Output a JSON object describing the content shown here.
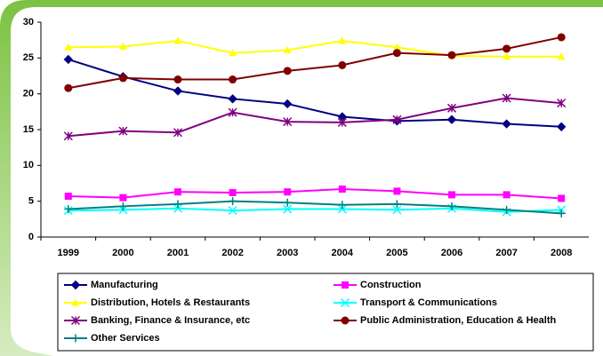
{
  "chart_data": {
    "type": "line",
    "categories": [
      "1999",
      "2000",
      "2001",
      "2002",
      "2003",
      "2004",
      "2005",
      "2006",
      "2007",
      "2008"
    ],
    "ylim": [
      0,
      30
    ],
    "yticks": [
      0,
      5,
      10,
      15,
      20,
      25,
      30
    ],
    "grid": false,
    "series": [
      {
        "name": "Manufacturing",
        "color": "#000080",
        "marker": "diamond",
        "values": [
          24.8,
          22.4,
          20.4,
          19.3,
          18.6,
          16.8,
          16.2,
          16.4,
          15.8,
          15.4
        ]
      },
      {
        "name": "Construction",
        "color": "#ff00ff",
        "marker": "square",
        "values": [
          5.7,
          5.5,
          6.3,
          6.2,
          6.3,
          6.7,
          6.4,
          5.9,
          5.9,
          5.4
        ]
      },
      {
        "name": "Distribution, Hotels & Restaurants",
        "color": "#ffff00",
        "marker": "triangle",
        "values": [
          26.5,
          26.6,
          27.4,
          25.7,
          26.1,
          27.4,
          26.5,
          25.3,
          25.2,
          25.2
        ]
      },
      {
        "name": "Transport & Communications",
        "color": "#00ffff",
        "marker": "x",
        "values": [
          3.7,
          3.8,
          4.0,
          3.7,
          3.9,
          3.9,
          3.8,
          4.0,
          3.5,
          3.8
        ]
      },
      {
        "name": "Banking, Finance & Insurance, etc",
        "color": "#800080",
        "marker": "asterisk",
        "values": [
          14.1,
          14.8,
          14.6,
          17.4,
          16.1,
          16.0,
          16.4,
          18.0,
          19.4,
          18.7
        ]
      },
      {
        "name": "Public Administration, Education & Health",
        "color": "#800000",
        "marker": "circle",
        "values": [
          20.8,
          22.2,
          22.0,
          22.0,
          23.2,
          24.0,
          25.7,
          25.4,
          26.3,
          27.9
        ]
      },
      {
        "name": "Other Services",
        "color": "#008080",
        "marker": "plus",
        "values": [
          3.9,
          4.3,
          4.6,
          5.0,
          4.8,
          4.5,
          4.6,
          4.3,
          3.8,
          3.3
        ]
      }
    ]
  }
}
